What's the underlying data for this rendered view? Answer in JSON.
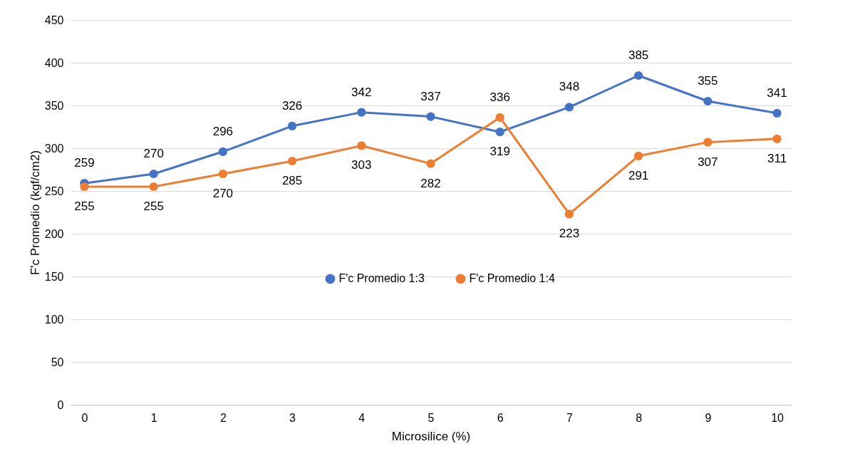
{
  "chart_data": {
    "type": "line",
    "xlabel": "Microsilice (%)",
    "ylabel": "F'c Promedio (kgf/cm2)",
    "categories": [
      "0",
      "1",
      "2",
      "3",
      "4",
      "5",
      "6",
      "7",
      "8",
      "9",
      "10"
    ],
    "series": [
      {
        "name": "F'c Promedio 1:3",
        "color": "#4472c4",
        "values": [
          259,
          270,
          296,
          326,
          342,
          337,
          319,
          348,
          385,
          355,
          341
        ]
      },
      {
        "name": "F'c Promedio 1:4",
        "color": "#ed7d31",
        "values": [
          255,
          255,
          270,
          285,
          303,
          282,
          336,
          223,
          291,
          307,
          311
        ]
      }
    ],
    "ylim": [
      0,
      450
    ],
    "yticks": [
      0,
      50,
      100,
      150,
      200,
      250,
      300,
      350,
      400,
      450
    ],
    "grid": "y",
    "legend": "bottom",
    "marker": "circle",
    "line_style": "solid",
    "data_labels": true
  }
}
